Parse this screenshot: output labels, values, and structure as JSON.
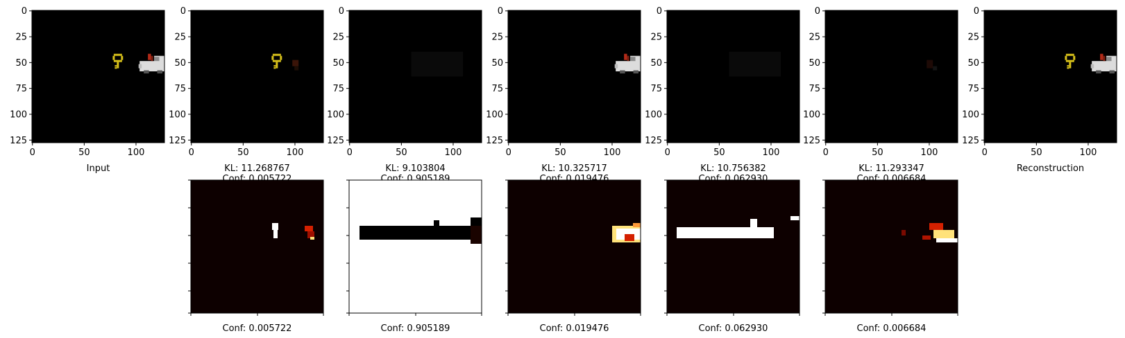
{
  "chart_data": {
    "type": "image-grid",
    "top_row": {
      "panels": [
        {
          "id": "input",
          "caption": "Input",
          "content": [
            "key",
            "car"
          ]
        },
        {
          "id": "slot1",
          "caption_lines": [
            "KL: 11.268767",
            "Conf: 0.005722"
          ],
          "content": [
            "key",
            "car-faint"
          ]
        },
        {
          "id": "slot2",
          "caption_lines": [
            "KL: 9.103804",
            "Conf: 0.905189"
          ],
          "content": [
            "faint-noise"
          ]
        },
        {
          "id": "slot3",
          "caption_lines": [
            "KL: 10.325717",
            "Conf: 0.019476"
          ],
          "content": [
            "car"
          ]
        },
        {
          "id": "slot4",
          "caption_lines": [
            "KL: 10.756382",
            "Conf: 0.062930"
          ],
          "content": [
            "faint-noise"
          ]
        },
        {
          "id": "slot5",
          "caption_lines": [
            "KL: 11.293347",
            "Conf: 0.006684"
          ],
          "content": [
            "faint-car-bits"
          ]
        },
        {
          "id": "reconstruction",
          "caption": "Reconstruction",
          "content": [
            "key",
            "car"
          ]
        }
      ],
      "x_ticks": [
        "0",
        "50",
        "100"
      ],
      "y_ticks": [
        "0",
        "25",
        "50",
        "75",
        "100",
        "125"
      ],
      "x_tick_values": [
        0,
        50,
        100
      ],
      "y_tick_values": [
        0,
        25,
        50,
        75,
        100,
        125
      ],
      "image_size": 128
    },
    "bottom_row": {
      "colormap": "hot",
      "panels": [
        {
          "id": "mask1",
          "caption": "Conf: 0.005722",
          "background": "#0d0000"
        },
        {
          "id": "mask2",
          "caption": "Conf: 0.905189",
          "background": "#ffffff"
        },
        {
          "id": "mask3",
          "caption": "Conf: 0.019476",
          "background": "#0d0000"
        },
        {
          "id": "mask4",
          "caption": "Conf: 0.062930",
          "background": "#0d0000"
        },
        {
          "id": "mask5",
          "caption": "Conf: 0.006684",
          "background": "#0d0000"
        }
      ]
    }
  },
  "colors": {
    "image_bg": "#000000",
    "mask_dark": "#0d0000",
    "key_yellow": "#d9c21a",
    "car_white": "#dcdcdc",
    "car_red": "#b22a18",
    "hot_white": "#ffffff",
    "hot_yellow": "#ffe27a",
    "hot_red": "#d42000"
  }
}
